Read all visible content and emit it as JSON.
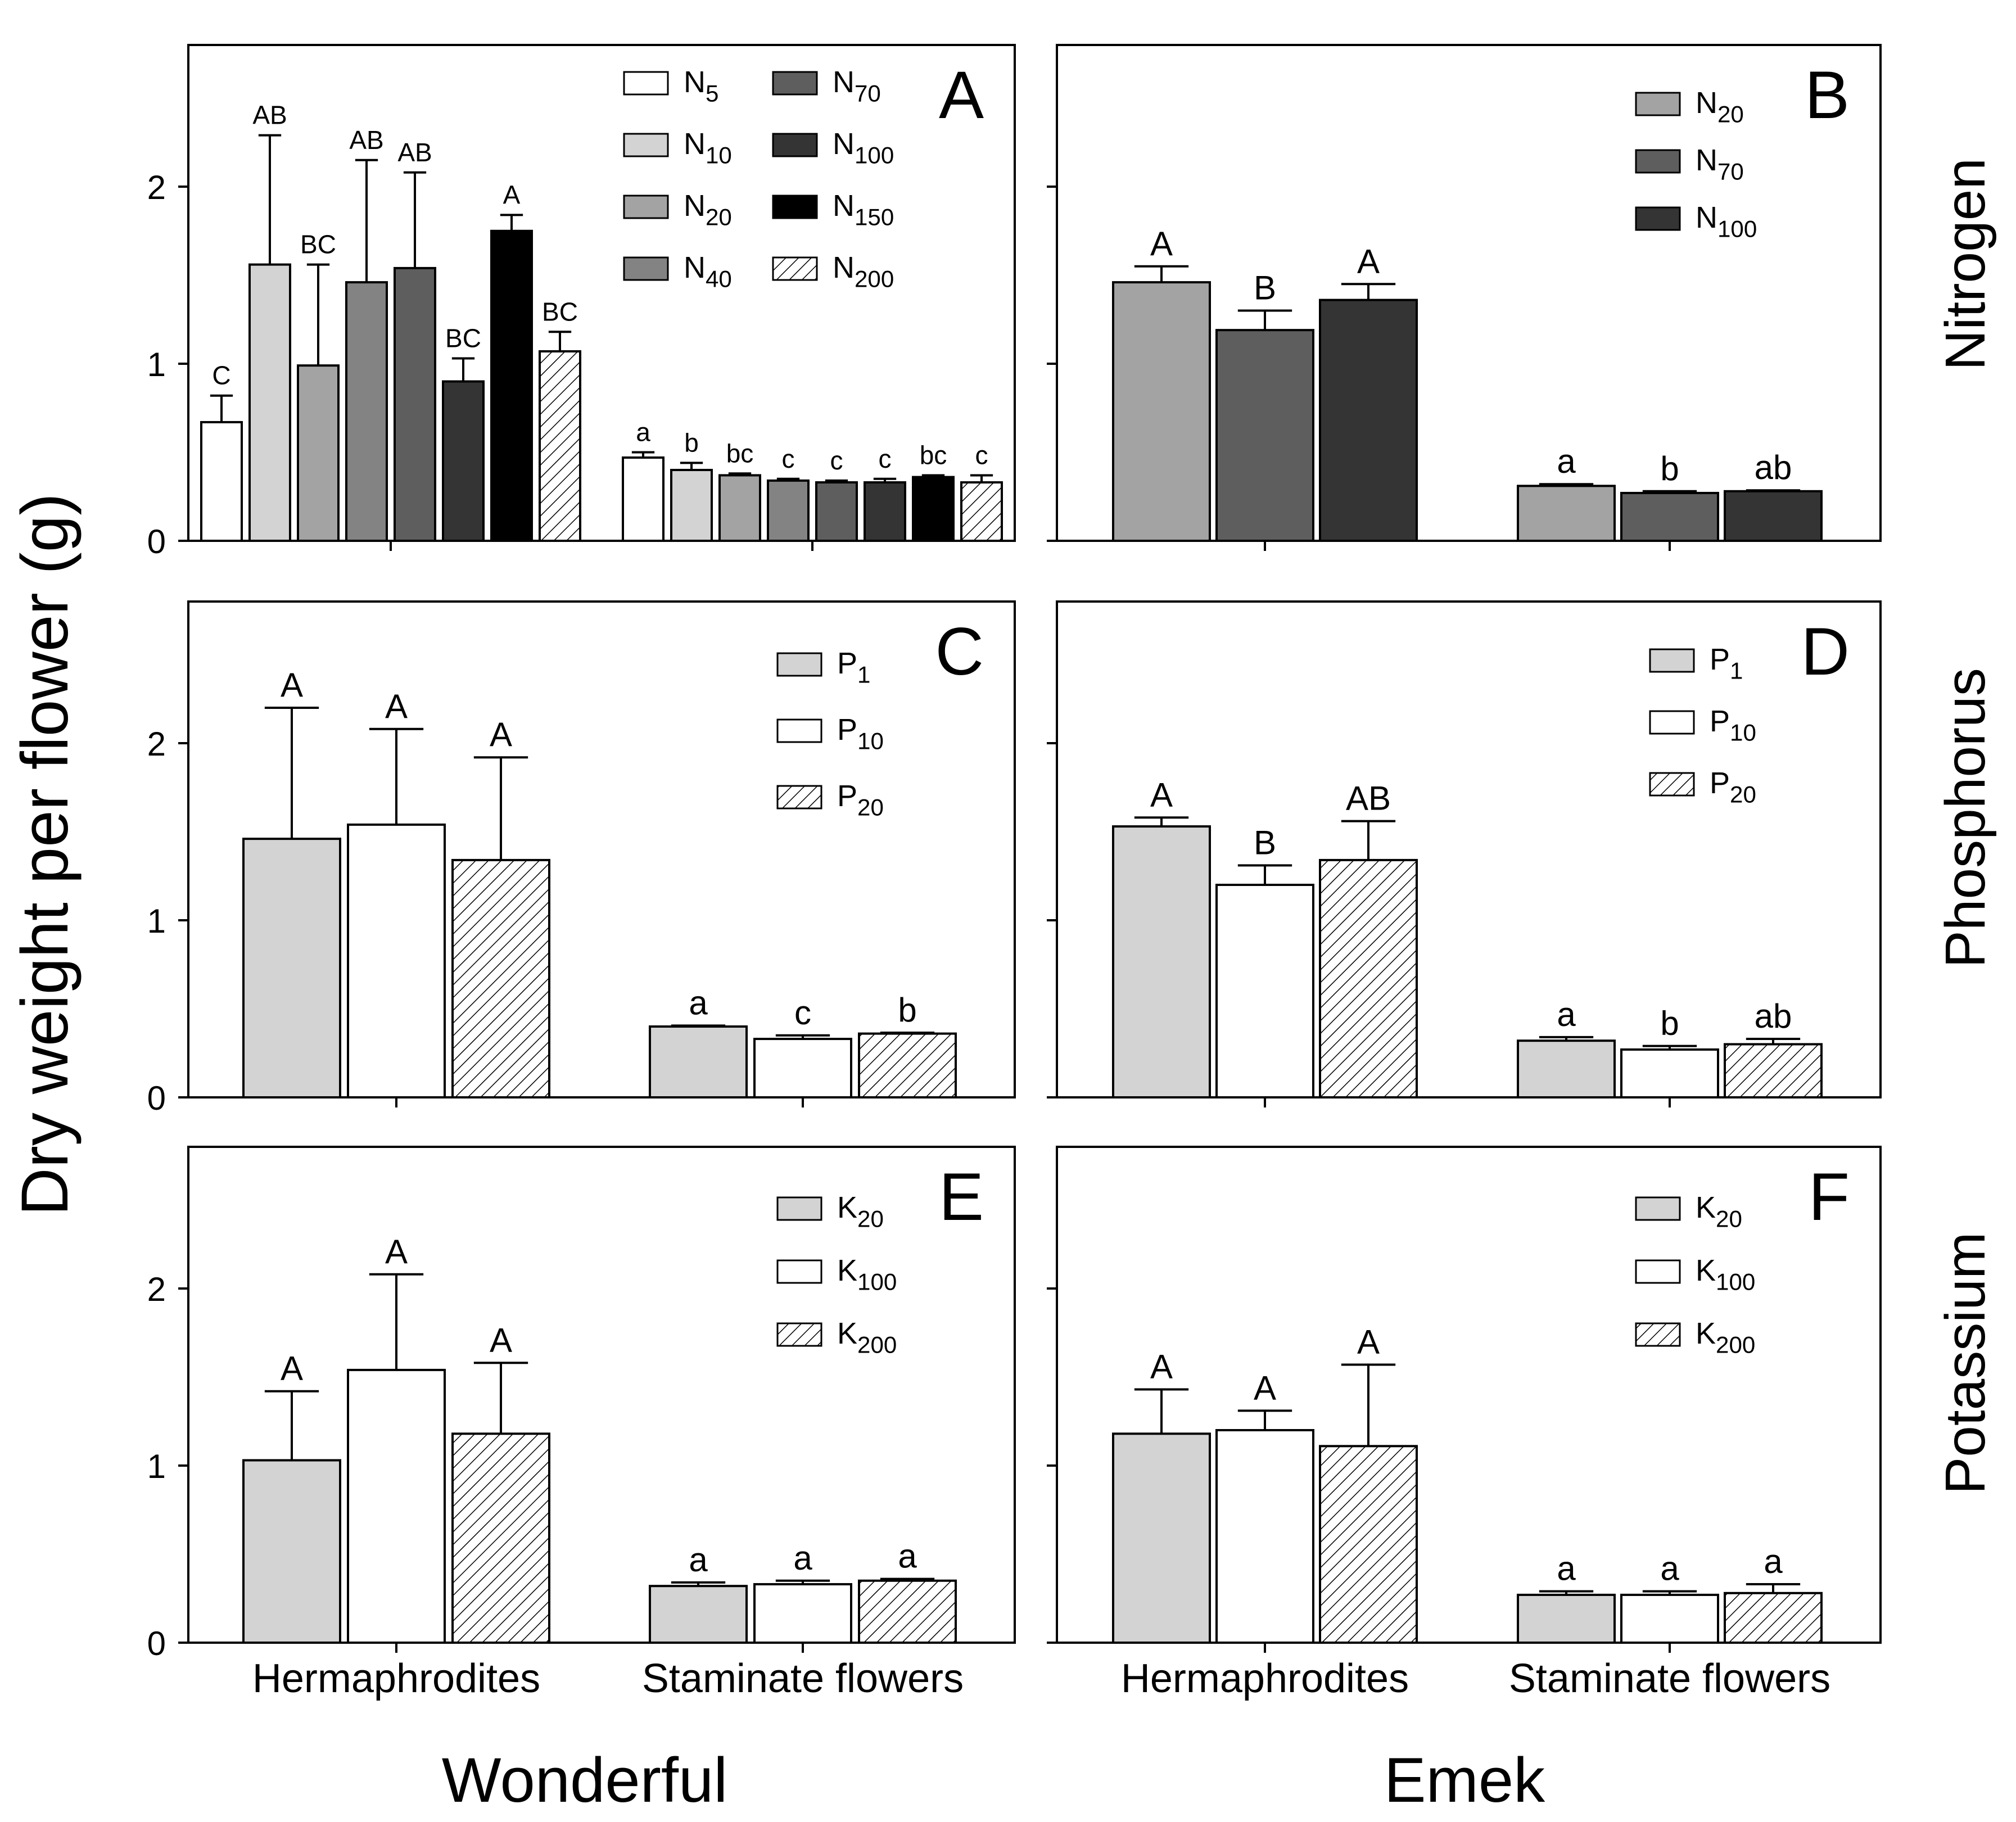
{
  "figure": {
    "y_axis_label": "Dry weight per flower (g)",
    "cultivars": [
      "Wonderful",
      "Emek"
    ],
    "nutrients": [
      "Nitrogen",
      "Phosphorus",
      "Potassium"
    ],
    "groups": [
      "Hermaphrodites",
      "Staminate flowers"
    ]
  },
  "fills": {
    "white": "#ffffff",
    "light": "#d3d3d3",
    "mid": "#a3a3a3",
    "midDark": "#838383",
    "dark1": "#5e5e5e",
    "dark2": "#343434",
    "black": "#000000",
    "hatch": "hatch"
  },
  "chart_data": [
    {
      "type": "bar",
      "panel": "A",
      "cultivar": "Wonderful",
      "nutrient": "Nitrogen",
      "categories": [
        "Hermaphrodites",
        "Staminate flowers"
      ],
      "ylim": [
        0,
        2.8
      ],
      "yticks": [
        0,
        1,
        2
      ],
      "series": [
        {
          "name": "N5",
          "sub": "5",
          "fill": "white",
          "values": [
            0.67,
            0.47
          ],
          "errors": [
            0.15,
            0.03
          ],
          "letters": [
            "C",
            "a"
          ]
        },
        {
          "name": "N10",
          "sub": "10",
          "fill": "light",
          "values": [
            1.56,
            0.4
          ],
          "errors": [
            0.73,
            0.04
          ],
          "letters": [
            "AB",
            "b"
          ]
        },
        {
          "name": "N20",
          "sub": "20",
          "fill": "mid",
          "values": [
            0.99,
            0.37
          ],
          "errors": [
            0.57,
            0.01
          ],
          "letters": [
            "BC",
            "bc"
          ]
        },
        {
          "name": "N40",
          "sub": "40",
          "fill": "midDark",
          "values": [
            1.46,
            0.34
          ],
          "errors": [
            0.69,
            0.01
          ],
          "letters": [
            "AB",
            "c"
          ]
        },
        {
          "name": "N70",
          "sub": "70",
          "fill": "dark1",
          "values": [
            1.54,
            0.33
          ],
          "errors": [
            0.54,
            0.01
          ],
          "letters": [
            "AB",
            "c"
          ]
        },
        {
          "name": "N100",
          "sub": "100",
          "fill": "dark2",
          "values": [
            0.9,
            0.33
          ],
          "errors": [
            0.13,
            0.02
          ],
          "letters": [
            "BC",
            "c"
          ]
        },
        {
          "name": "N150",
          "sub": "150",
          "fill": "black",
          "values": [
            1.75,
            0.36
          ],
          "errors": [
            0.09,
            0.01
          ],
          "letters": [
            "A",
            "bc"
          ]
        },
        {
          "name": "N200",
          "sub": "200",
          "fill": "hatch",
          "values": [
            1.07,
            0.33
          ],
          "errors": [
            0.11,
            0.04
          ],
          "letters": [
            "BC",
            "c"
          ]
        }
      ]
    },
    {
      "type": "bar",
      "panel": "B",
      "cultivar": "Emek",
      "nutrient": "Nitrogen",
      "categories": [
        "Hermaphrodites",
        "Staminate flowers"
      ],
      "ylim": [
        0,
        2.8
      ],
      "yticks": [
        0,
        1,
        2
      ],
      "series": [
        {
          "name": "N20",
          "sub": "20",
          "fill": "mid",
          "values": [
            1.46,
            0.31
          ],
          "errors": [
            0.09,
            0.01
          ],
          "letters": [
            "A",
            "a"
          ]
        },
        {
          "name": "N70",
          "sub": "70",
          "fill": "dark1",
          "values": [
            1.19,
            0.27
          ],
          "errors": [
            0.11,
            0.01
          ],
          "letters": [
            "B",
            "b"
          ]
        },
        {
          "name": "N100",
          "sub": "100",
          "fill": "dark2",
          "values": [
            1.36,
            0.28
          ],
          "errors": [
            0.09,
            0.005
          ],
          "letters": [
            "A",
            "ab"
          ]
        }
      ]
    },
    {
      "type": "bar",
      "panel": "C",
      "cultivar": "Wonderful",
      "nutrient": "Phosphorus",
      "categories": [
        "Hermaphrodites",
        "Staminate flowers"
      ],
      "ylim": [
        0,
        2.8
      ],
      "yticks": [
        0,
        1,
        2
      ],
      "series": [
        {
          "name": "P1",
          "sub": "1",
          "fill": "light",
          "values": [
            1.46,
            0.4
          ],
          "errors": [
            0.74,
            0.005
          ],
          "letters": [
            "A",
            "a"
          ]
        },
        {
          "name": "P10",
          "sub": "10",
          "fill": "white",
          "values": [
            1.54,
            0.33
          ],
          "errors": [
            0.54,
            0.02
          ],
          "letters": [
            "A",
            "c"
          ]
        },
        {
          "name": "P20",
          "sub": "20",
          "fill": "hatch",
          "values": [
            1.34,
            0.36
          ],
          "errors": [
            0.58,
            0.005
          ],
          "letters": [
            "A",
            "b"
          ]
        }
      ]
    },
    {
      "type": "bar",
      "panel": "D",
      "cultivar": "Emek",
      "nutrient": "Phosphorus",
      "categories": [
        "Hermaphrodites",
        "Staminate flowers"
      ],
      "ylim": [
        0,
        2.8
      ],
      "yticks": [
        0,
        1,
        2
      ],
      "series": [
        {
          "name": "P1",
          "sub": "1",
          "fill": "light",
          "values": [
            1.53,
            0.32
          ],
          "errors": [
            0.05,
            0.02
          ],
          "letters": [
            "A",
            "a"
          ]
        },
        {
          "name": "P10",
          "sub": "10",
          "fill": "white",
          "values": [
            1.2,
            0.27
          ],
          "errors": [
            0.11,
            0.02
          ],
          "letters": [
            "B",
            "b"
          ]
        },
        {
          "name": "P20",
          "sub": "20",
          "fill": "hatch",
          "values": [
            1.34,
            0.3
          ],
          "errors": [
            0.22,
            0.03
          ],
          "letters": [
            "AB",
            "ab"
          ]
        }
      ]
    },
    {
      "type": "bar",
      "panel": "E",
      "cultivar": "Wonderful",
      "nutrient": "Potassium",
      "categories": [
        "Hermaphrodites",
        "Staminate flowers"
      ],
      "ylim": [
        0,
        2.8
      ],
      "yticks": [
        0,
        1,
        2
      ],
      "series": [
        {
          "name": "K20",
          "sub": "20",
          "fill": "light",
          "values": [
            1.03,
            0.32
          ],
          "errors": [
            0.39,
            0.02
          ],
          "letters": [
            "A",
            "a"
          ]
        },
        {
          "name": "K100",
          "sub": "100",
          "fill": "white",
          "values": [
            1.54,
            0.33
          ],
          "errors": [
            0.54,
            0.02
          ],
          "letters": [
            "A",
            "a"
          ]
        },
        {
          "name": "K200",
          "sub": "200",
          "fill": "hatch",
          "values": [
            1.18,
            0.35
          ],
          "errors": [
            0.4,
            0.01
          ],
          "letters": [
            "A",
            "a"
          ]
        }
      ]
    },
    {
      "type": "bar",
      "panel": "F",
      "cultivar": "Emek",
      "nutrient": "Potassium",
      "categories": [
        "Hermaphrodites",
        "Staminate flowers"
      ],
      "ylim": [
        0,
        2.8
      ],
      "yticks": [
        0,
        1,
        2
      ],
      "series": [
        {
          "name": "K20",
          "sub": "20",
          "fill": "light",
          "values": [
            1.18,
            0.27
          ],
          "errors": [
            0.25,
            0.02
          ],
          "letters": [
            "A",
            "a"
          ]
        },
        {
          "name": "K100",
          "sub": "100",
          "fill": "white",
          "values": [
            1.2,
            0.27
          ],
          "errors": [
            0.11,
            0.02
          ],
          "letters": [
            "A",
            "a"
          ]
        },
        {
          "name": "K200",
          "sub": "200",
          "fill": "hatch",
          "values": [
            1.11,
            0.28
          ],
          "errors": [
            0.46,
            0.05
          ],
          "letters": [
            "A",
            "a"
          ]
        }
      ]
    }
  ]
}
